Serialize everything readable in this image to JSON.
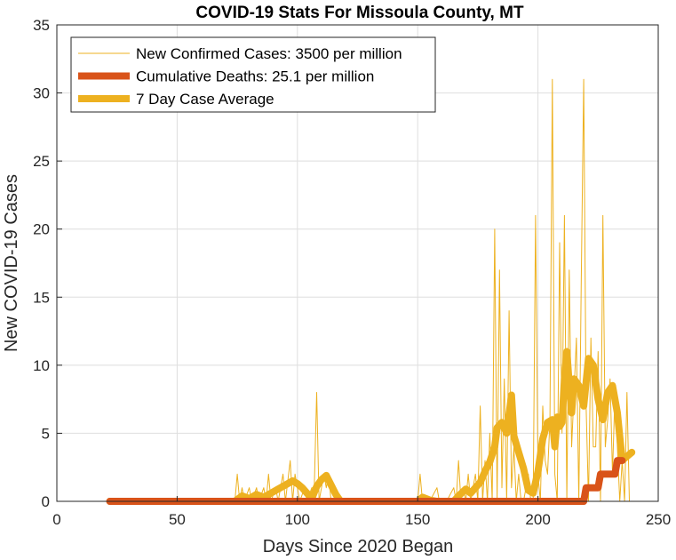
{
  "chart_data": {
    "type": "line",
    "title": "COVID-19 Stats For Missoula County, MT",
    "xlabel": "Days Since 2020 Began",
    "ylabel": "New COVID-19 Cases",
    "xlim": [
      0,
      250
    ],
    "ylim": [
      0,
      35
    ],
    "xticks": [
      0,
      50,
      100,
      150,
      200,
      250
    ],
    "yticks": [
      0,
      5,
      10,
      15,
      20,
      25,
      30,
      35
    ],
    "grid": true,
    "legend_position": "top-left",
    "series": [
      {
        "name": "New Confirmed Cases: 3500 per million",
        "color": "#EDB120",
        "line_style": "thin",
        "points": [
          [
            22,
            0
          ],
          [
            74,
            0
          ],
          [
            75,
            2
          ],
          [
            76,
            0
          ],
          [
            77,
            1
          ],
          [
            78,
            0
          ],
          [
            80,
            1
          ],
          [
            81,
            0
          ],
          [
            83,
            1
          ],
          [
            84,
            0
          ],
          [
            86,
            1
          ],
          [
            87,
            0
          ],
          [
            88,
            2
          ],
          [
            89,
            0
          ],
          [
            91,
            1
          ],
          [
            92,
            0
          ],
          [
            94,
            2
          ],
          [
            95,
            0
          ],
          [
            97,
            3
          ],
          [
            98,
            0
          ],
          [
            99,
            2
          ],
          [
            100,
            1
          ],
          [
            101,
            0
          ],
          [
            103,
            1
          ],
          [
            104,
            0
          ],
          [
            106,
            1
          ],
          [
            107,
            1
          ],
          [
            108,
            8
          ],
          [
            109,
            0
          ],
          [
            111,
            2
          ],
          [
            112,
            1
          ],
          [
            113,
            2
          ],
          [
            114,
            0
          ],
          [
            115,
            0
          ],
          [
            150,
            0
          ],
          [
            151,
            2
          ],
          [
            152,
            0
          ],
          [
            155,
            0
          ],
          [
            158,
            1
          ],
          [
            159,
            0
          ],
          [
            162,
            0
          ],
          [
            165,
            1
          ],
          [
            166,
            0
          ],
          [
            167,
            3
          ],
          [
            168,
            0
          ],
          [
            169,
            1
          ],
          [
            170,
            0
          ],
          [
            171,
            2
          ],
          [
            172,
            0
          ],
          [
            174,
            2
          ],
          [
            175,
            0
          ],
          [
            176,
            7
          ],
          [
            177,
            0
          ],
          [
            178,
            3
          ],
          [
            179,
            0
          ],
          [
            180,
            5
          ],
          [
            181,
            0
          ],
          [
            182,
            20
          ],
          [
            183,
            0
          ],
          [
            184,
            17
          ],
          [
            185,
            1
          ],
          [
            186,
            9
          ],
          [
            187,
            0
          ],
          [
            188,
            14
          ],
          [
            189,
            1
          ],
          [
            190,
            4
          ],
          [
            191,
            0
          ],
          [
            192,
            2
          ],
          [
            193,
            0
          ],
          [
            194,
            0
          ],
          [
            196,
            2
          ],
          [
            197,
            0
          ],
          [
            198,
            0
          ],
          [
            199,
            21
          ],
          [
            200,
            2
          ],
          [
            201,
            0
          ],
          [
            202,
            7
          ],
          [
            203,
            3
          ],
          [
            204,
            2
          ],
          [
            205,
            6
          ],
          [
            206,
            31
          ],
          [
            207,
            2
          ],
          [
            208,
            0
          ],
          [
            209,
            19
          ],
          [
            210,
            5
          ],
          [
            211,
            21
          ],
          [
            212,
            0
          ],
          [
            213,
            17
          ],
          [
            214,
            4
          ],
          [
            215,
            8
          ],
          [
            216,
            12
          ],
          [
            217,
            0
          ],
          [
            218,
            16
          ],
          [
            219,
            31
          ],
          [
            220,
            7
          ],
          [
            221,
            0
          ],
          [
            222,
            12
          ],
          [
            223,
            4
          ],
          [
            224,
            4
          ],
          [
            225,
            11
          ],
          [
            226,
            0
          ],
          [
            227,
            21
          ],
          [
            228,
            4
          ],
          [
            229,
            6
          ],
          [
            230,
            9
          ],
          [
            231,
            2
          ],
          [
            232,
            8
          ],
          [
            233,
            4
          ],
          [
            234,
            0
          ],
          [
            235,
            3
          ],
          [
            236,
            0
          ],
          [
            237,
            8
          ],
          [
            238,
            0
          ]
        ]
      },
      {
        "name": "Cumulative Deaths: 25.1 per million",
        "color": "#D95319",
        "line_style": "thick",
        "points": [
          [
            22,
            0
          ],
          [
            219,
            0
          ],
          [
            220,
            1
          ],
          [
            225,
            1
          ],
          [
            226,
            2
          ],
          [
            232,
            2
          ],
          [
            233,
            3
          ],
          [
            235,
            3
          ]
        ]
      },
      {
        "name": "7 Day Case Average",
        "color": "#EDB120",
        "line_style": "thick",
        "points": [
          [
            22,
            0
          ],
          [
            74,
            0
          ],
          [
            77,
            0.4
          ],
          [
            80,
            0.2
          ],
          [
            83,
            0.5
          ],
          [
            86,
            0.3
          ],
          [
            89,
            0.6
          ],
          [
            92,
            0.9
          ],
          [
            95,
            1.2
          ],
          [
            98,
            1.5
          ],
          [
            100,
            1.3
          ],
          [
            102,
            1.0
          ],
          [
            104,
            0.6
          ],
          [
            106,
            0.2
          ],
          [
            108,
            1.1
          ],
          [
            110,
            1.6
          ],
          [
            112,
            1.9
          ],
          [
            114,
            1.2
          ],
          [
            116,
            0.5
          ],
          [
            118,
            0
          ],
          [
            150,
            0
          ],
          [
            152,
            0.3
          ],
          [
            155,
            0.1
          ],
          [
            158,
            0
          ],
          [
            165,
            0
          ],
          [
            167,
            0.4
          ],
          [
            170,
            0.9
          ],
          [
            172,
            0.6
          ],
          [
            174,
            1.0
          ],
          [
            176,
            1.4
          ],
          [
            178,
            2.2
          ],
          [
            180,
            2.9
          ],
          [
            182,
            4.0
          ],
          [
            183,
            5.4
          ],
          [
            185,
            5.8
          ],
          [
            187,
            5.0
          ],
          [
            189,
            7.8
          ],
          [
            190,
            4.8
          ],
          [
            192,
            3.6
          ],
          [
            194,
            2.4
          ],
          [
            196,
            0.8
          ],
          [
            198,
            0.6
          ],
          [
            200,
            2.2
          ],
          [
            202,
            4.6
          ],
          [
            204,
            5.8
          ],
          [
            206,
            6.0
          ],
          [
            207,
            4.0
          ],
          [
            208,
            6.2
          ],
          [
            209,
            5.5
          ],
          [
            210,
            5.8
          ],
          [
            211,
            9.0
          ],
          [
            212,
            11.0
          ],
          [
            213,
            8.6
          ],
          [
            214,
            6.5
          ],
          [
            215,
            9.0
          ],
          [
            217,
            8.5
          ],
          [
            219,
            7.0
          ],
          [
            221,
            10.5
          ],
          [
            223,
            10.0
          ],
          [
            225,
            7.5
          ],
          [
            227,
            6.0
          ],
          [
            229,
            8.0
          ],
          [
            231,
            8.5
          ],
          [
            233,
            6.5
          ],
          [
            235,
            3.0
          ],
          [
            237,
            3.3
          ],
          [
            239,
            3.6
          ]
        ]
      }
    ]
  }
}
